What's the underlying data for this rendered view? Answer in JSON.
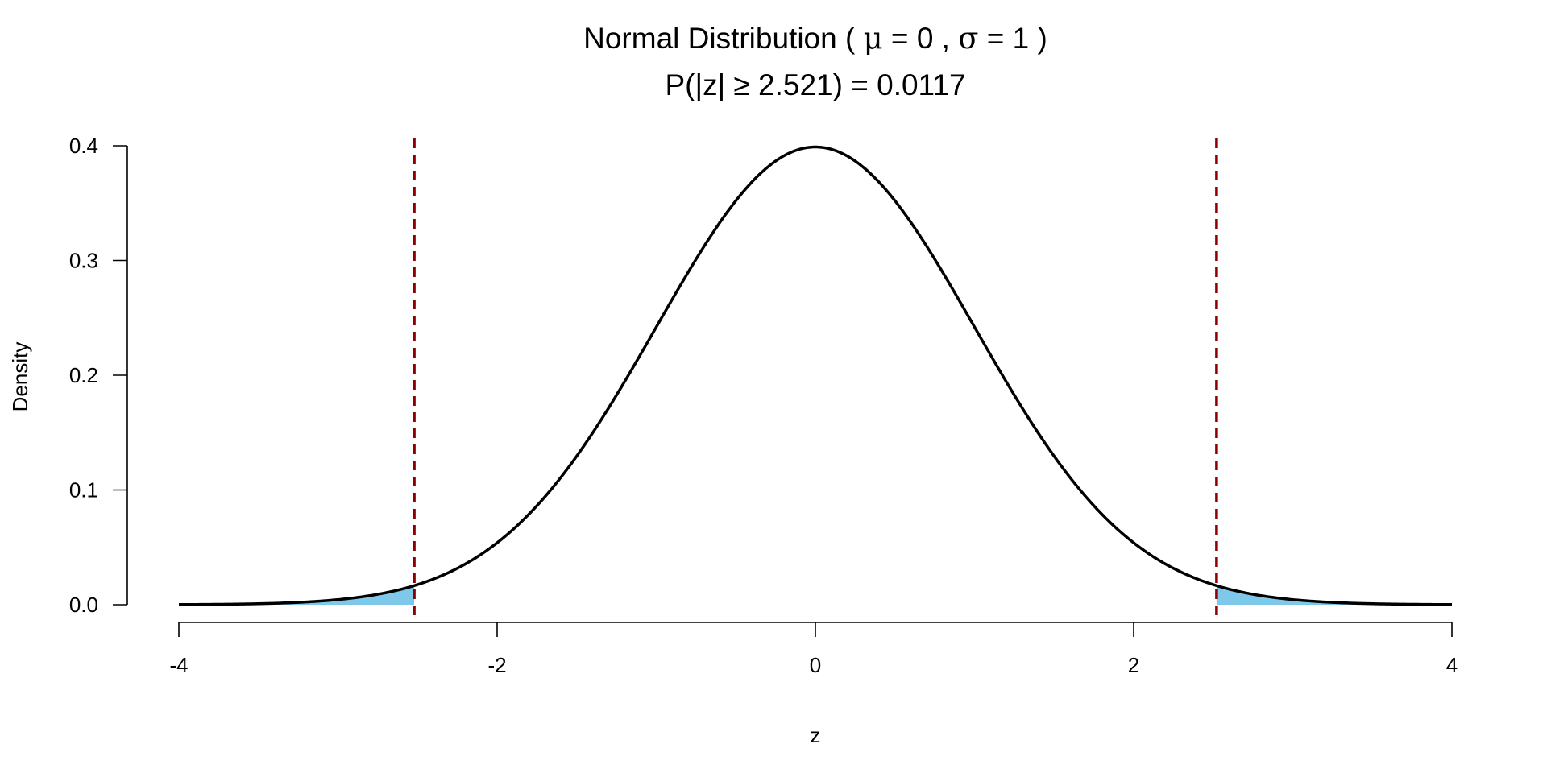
{
  "chart_data": {
    "type": "area",
    "title": {
      "prefix": "Normal Distribution ( ",
      "mu_symbol": "μ",
      "mu_text": " = 0 , ",
      "sigma_symbol": "σ",
      "sigma_text": " = 1 )"
    },
    "subtitle": "P(|z| ≥ 2.521) = 0.0117",
    "xlabel": "z",
    "ylabel": "Density",
    "xlim": [
      -4,
      4
    ],
    "ylim": [
      0,
      0.4
    ],
    "x_ticks": [
      -4,
      -2,
      0,
      2,
      4
    ],
    "x_tick_labels": [
      "-4",
      "-2",
      "0",
      "2",
      "4"
    ],
    "y_ticks": [
      0,
      0.1,
      0.2,
      0.3,
      0.4
    ],
    "y_tick_labels": [
      "0.0",
      "0.1",
      "0.2",
      "0.3",
      "0.4"
    ],
    "distribution": {
      "mean": 0,
      "sd": 1
    },
    "critical_values": [
      -2.521,
      2.521
    ],
    "shaded_regions": [
      [
        -4,
        -2.521
      ],
      [
        2.521,
        4
      ]
    ],
    "grid": false,
    "colors": {
      "curve": "#000000",
      "shade": "#7ec8ea",
      "critical_line": "#8b0000",
      "axis": "#000000"
    }
  }
}
